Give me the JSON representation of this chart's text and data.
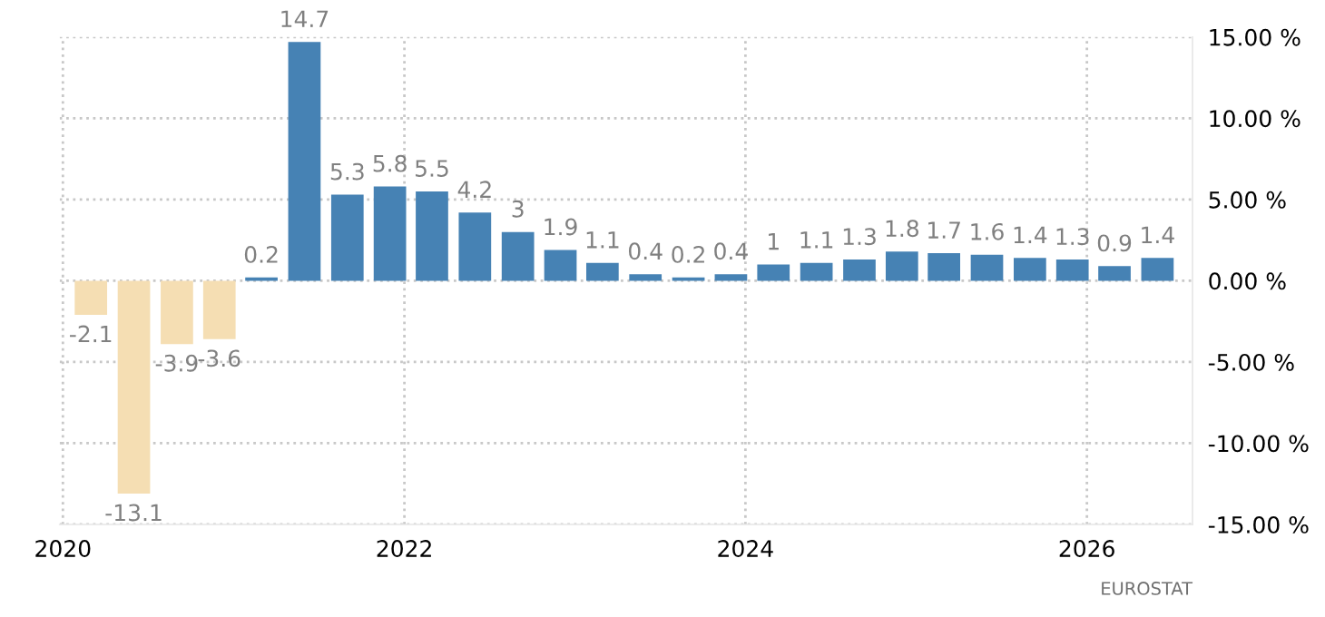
{
  "chart_data": {
    "type": "bar",
    "x": [
      "2020-03",
      "2020-06",
      "2020-09",
      "2020-12",
      "2021-03",
      "2021-06",
      "2021-09",
      "2021-12",
      "2022-03",
      "2022-06",
      "2022-09",
      "2022-12",
      "2023-03",
      "2023-06",
      "2023-09",
      "2023-12",
      "2024-03",
      "2024-06",
      "2024-09",
      "2024-12",
      "2025-03",
      "2025-06",
      "2025-09",
      "2025-12",
      "2026-03",
      "2026-06"
    ],
    "values": [
      -2.1,
      -13.1,
      -3.9,
      -3.6,
      0.2,
      14.7,
      5.3,
      5.8,
      5.5,
      4.2,
      3,
      1.9,
      1.1,
      0.4,
      0.2,
      0.4,
      1,
      1.1,
      1.3,
      1.8,
      1.7,
      1.6,
      1.4,
      1.3,
      0.9,
      1.4
    ],
    "colors": [
      "#f5deb3",
      "#f5deb3",
      "#f5deb3",
      "#f5deb3",
      "#4682b4",
      "#4682b4",
      "#4682b4",
      "#4682b4",
      "#4682b4",
      "#4682b4",
      "#4682b4",
      "#4682b4",
      "#4682b4",
      "#4682b4",
      "#4682b4",
      "#4682b4",
      "#4682b4",
      "#4682b4",
      "#4682b4",
      "#4682b4",
      "#4682b4",
      "#4682b4",
      "#4682b4",
      "#4682b4",
      "#4682b4",
      "#4682b4"
    ],
    "data_labels": true,
    "xlim": [
      "2019-12-25",
      "2026-08-15"
    ],
    "xticks": [
      "2020",
      "2022",
      "2024",
      "2026"
    ],
    "ylim": [
      -15,
      15
    ],
    "yticks": [
      {
        "value": 15,
        "label": "15.00 %"
      },
      {
        "value": 10,
        "label": "10.00 %"
      },
      {
        "value": 5,
        "label": "5.00 %"
      },
      {
        "value": 0,
        "label": "0.00 %"
      },
      {
        "value": -5,
        "label": "-5.00 %"
      },
      {
        "value": -10,
        "label": "-10.00 %"
      },
      {
        "value": -15,
        "label": "-15.00 %"
      }
    ],
    "grid": true,
    "annotations": [
      "EUROSTAT"
    ]
  }
}
